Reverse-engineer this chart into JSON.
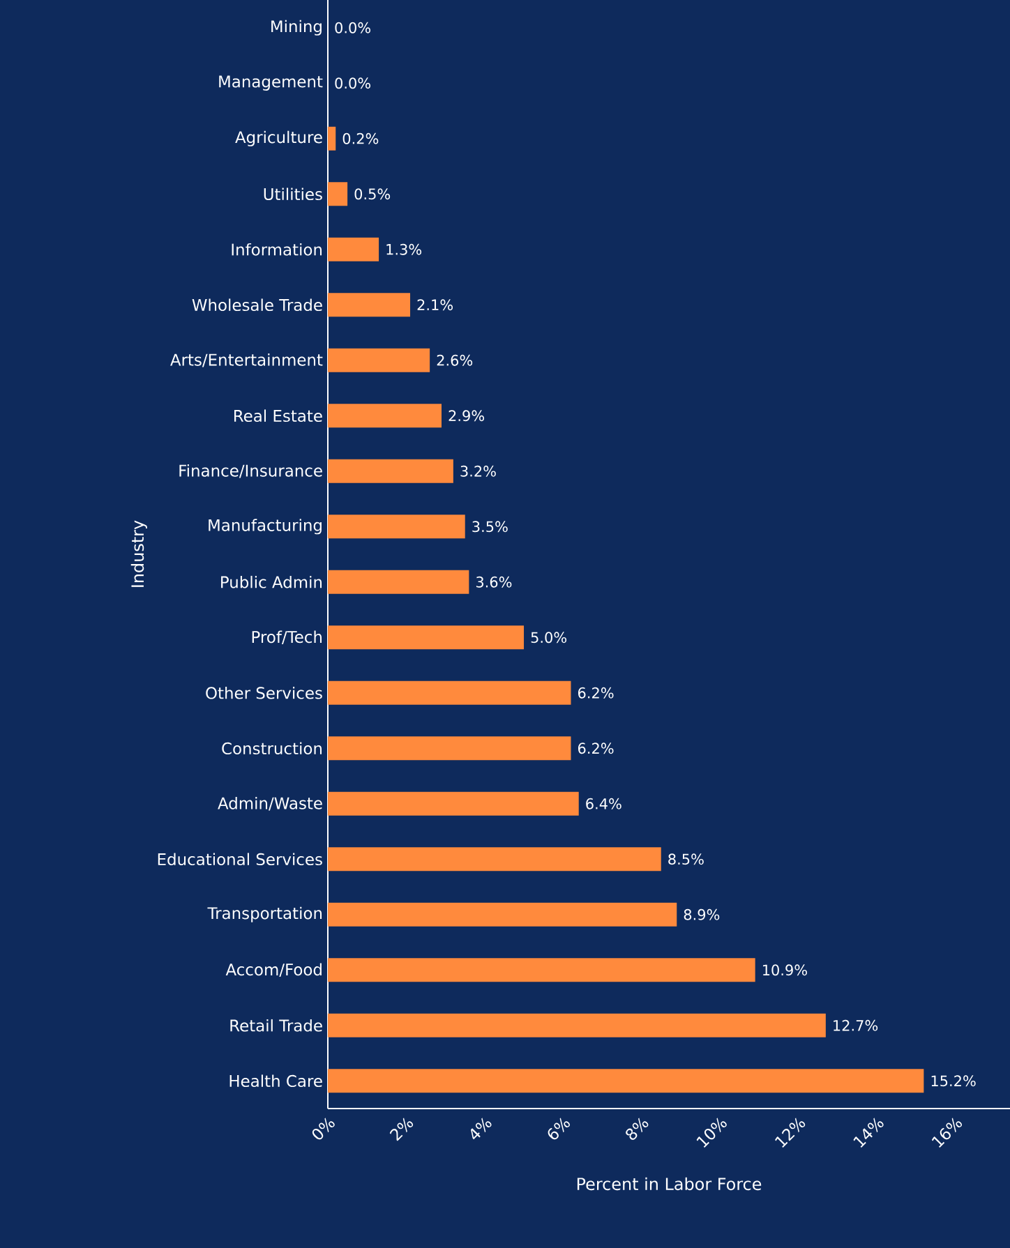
{
  "chart_data": {
    "type": "bar",
    "orientation": "horizontal",
    "xlabel": "Percent in Labor Force",
    "ylabel": "Industry",
    "categories": [
      "Mining",
      "Management",
      "Agriculture",
      "Utilities",
      "Information",
      "Wholesale Trade",
      "Arts/Entertainment",
      "Real Estate",
      "Finance/Insurance",
      "Manufacturing",
      "Public Admin",
      "Prof/Tech",
      "Other Services",
      "Construction",
      "Admin/Waste",
      "Educational Services",
      "Transportation",
      "Accom/Food",
      "Retail Trade",
      "Health Care"
    ],
    "values": [
      0.0,
      0.0,
      0.2,
      0.5,
      1.3,
      2.1,
      2.6,
      2.9,
      3.2,
      3.5,
      3.6,
      5.0,
      6.2,
      6.2,
      6.4,
      8.5,
      8.9,
      10.9,
      12.7,
      15.2
    ],
    "value_labels": [
      "0.0%",
      "0.0%",
      "0.2%",
      "0.5%",
      "1.3%",
      "2.1%",
      "2.6%",
      "2.9%",
      "3.2%",
      "3.5%",
      "3.6%",
      "5.0%",
      "6.2%",
      "6.2%",
      "6.4%",
      "8.5%",
      "8.9%",
      "10.9%",
      "12.7%",
      "15.2%"
    ],
    "color": "#ff8a3d",
    "xlim": [
      0,
      17.4
    ],
    "xticks": [
      {
        "value": 0,
        "label": "0%"
      },
      {
        "value": 2,
        "label": "2%"
      },
      {
        "value": 4,
        "label": "4%"
      },
      {
        "value": 6,
        "label": "6%"
      },
      {
        "value": 8,
        "label": "8%"
      },
      {
        "value": 10,
        "label": "10%"
      },
      {
        "value": 12,
        "label": "12%"
      },
      {
        "value": 14,
        "label": "14%"
      },
      {
        "value": 16,
        "label": "16%"
      }
    ]
  }
}
